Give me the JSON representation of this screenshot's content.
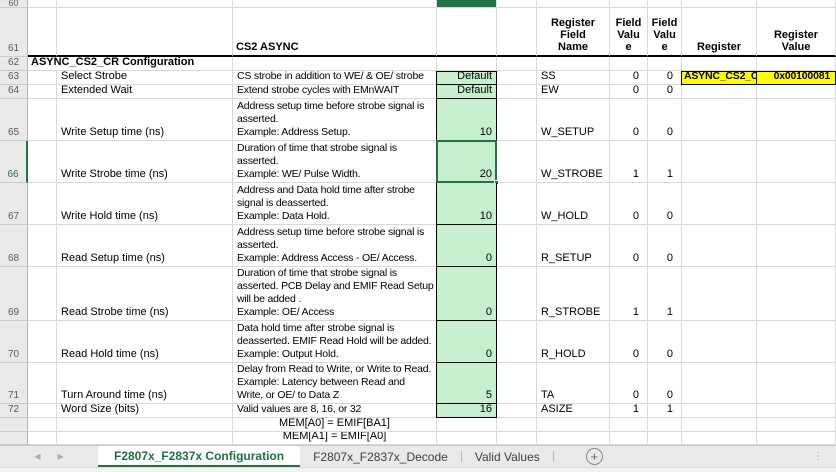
{
  "colors": {
    "accent_green": "#217346",
    "value_cell_green": "#C6EFCE",
    "highlight_yellow": "#FFFF00"
  },
  "rows": {
    "r60": {
      "num": "60"
    },
    "r61": {
      "num": "61",
      "section": "CS2 ASYNC",
      "h_field_name": "Register\nField\nName",
      "h_fv1": "Field\nValu\ne",
      "h_fv2": "Field\nValu\ne",
      "h_register": "Register",
      "h_register_value": "Register\nValue"
    },
    "r62": {
      "num": "62",
      "title": "ASYNC_CS2_CR Configuration"
    },
    "r63": {
      "num": "63",
      "label": "Select Strobe",
      "desc": "CS strobe in addition to WE/ & OE/ strobe",
      "value": "Default",
      "field": "SS",
      "fv1": "0",
      "fv2": "0",
      "register": "ASYNC_CS2_CR",
      "register_value": "0x00100081"
    },
    "r64": {
      "num": "64",
      "label": "Extended Wait",
      "desc": "Extend strobe cycles with EMnWAIT",
      "value": "Default",
      "field": "EW",
      "fv1": "0",
      "fv2": "0"
    },
    "r65": {
      "num": "65",
      "label": "Write Setup time (ns)",
      "desc": "Address setup time before strobe signal is\nasserted.\nExample: Address Setup.",
      "value": "10",
      "field": "W_SETUP",
      "fv1": "0",
      "fv2": "0"
    },
    "r66": {
      "num": "66",
      "label": "Write Strobe time (ns)",
      "desc": "Duration of time that strobe signal is\nasserted.\nExample: WE/ Pulse Width.",
      "value": "20",
      "field": "W_STROBE",
      "fv1": "1",
      "fv2": "1"
    },
    "r67": {
      "num": "67",
      "label": "Write Hold time (ns)",
      "desc": "Address and Data hold time after strobe\nsignal is deasserted.\nExample: Data Hold.",
      "value": "10",
      "field": "W_HOLD",
      "fv1": "0",
      "fv2": "0"
    },
    "r68": {
      "num": "68",
      "label": "Read Setup time (ns)",
      "desc": "Address setup time before strobe signal is\nasserted.\nExample: Address Access - OE/ Access.",
      "value": "0",
      "field": "R_SETUP",
      "fv1": "0",
      "fv2": "0"
    },
    "r69": {
      "num": "69",
      "label": "Read Strobe time (ns)",
      "desc": "Duration of time that strobe signal is\nasserted. PCB Delay and EMIF Read Setup\nwill be added .\nExample: OE/ Access",
      "value": "0",
      "field": "R_STROBE",
      "fv1": "1",
      "fv2": "1"
    },
    "r70": {
      "num": "70",
      "label": "Read Hold time (ns)",
      "desc": "Data hold time after strobe signal is\ndeasserted. EMIF Read Hold will be added.\nExample: Output Hold.",
      "value": "0",
      "field": "R_HOLD",
      "fv1": "0",
      "fv2": "0"
    },
    "r71": {
      "num": "71",
      "label": "Turn Around time (ns)",
      "desc": "Delay from Read to Write, or Write to Read.\nExample: Latency between Read and\nWrite, or OE/ to Data Z",
      "value": "5",
      "field": "TA",
      "fv1": "0",
      "fv2": "0"
    },
    "r72": {
      "num": "72",
      "label": "Word Size (bits)",
      "desc": "Valid values are 8, 16, or 32",
      "value": "16",
      "field": "ASIZE",
      "fv1": "1",
      "fv2": "1"
    },
    "r73": {
      "note": "MEM[A0] = EMIF[BA1]"
    },
    "r74": {
      "note": "MEM[A1] = EMIF[A0]"
    }
  },
  "tabs": {
    "scroll_left_glyph": "◀",
    "scroll_right_glyph": "▶",
    "active": "F2807x_F2837x Configuration",
    "decode": "F2807x_F2837x_Decode",
    "valid_values": "Valid Values",
    "add_glyph": "+",
    "overflow_glyph": "⋮"
  }
}
